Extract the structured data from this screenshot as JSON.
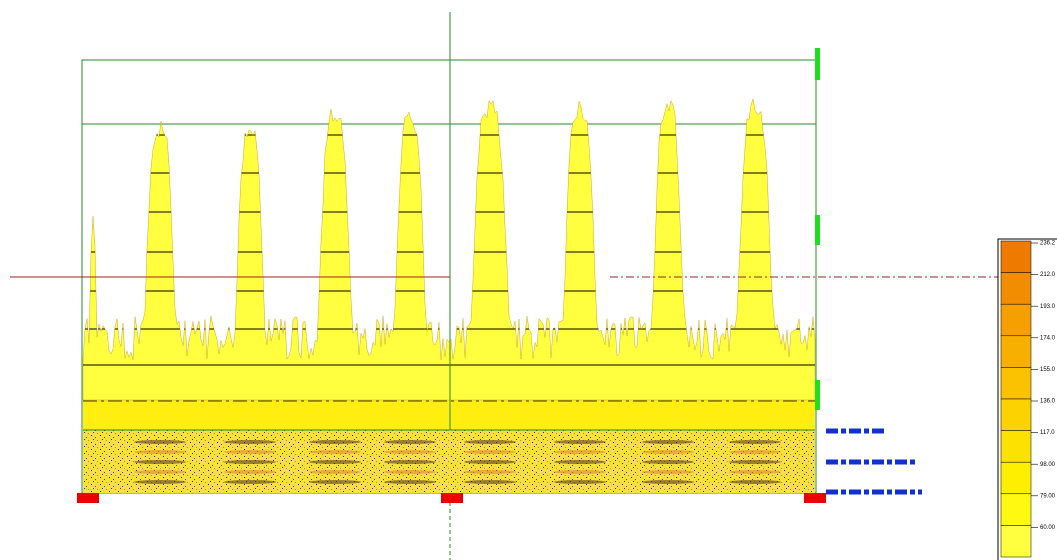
{
  "colorbar": {
    "labels": [
      "236.2",
      "212.0",
      "193.0",
      "174.0",
      "155.0",
      "136.0",
      "117.0",
      "98.00",
      "79.00",
      "60.00"
    ]
  }
}
